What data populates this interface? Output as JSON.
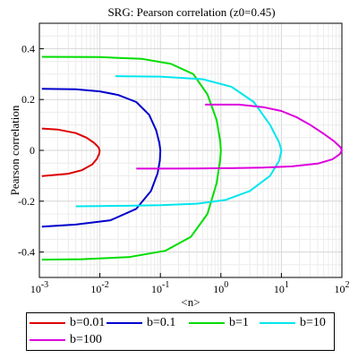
{
  "chart_data": {
    "type": "line",
    "title": "SRG: Pearson correlation (z0=0.45)",
    "xlabel": "<n>",
    "ylabel": "Pearson correlation",
    "x_scale": "log",
    "xlim": [
      0.001,
      100
    ],
    "ylim": [
      -0.5,
      0.5
    ],
    "grid": true,
    "legend_position": "bottom",
    "x_ticks": [
      {
        "value": 0.001,
        "base": "10",
        "exp": "-3"
      },
      {
        "value": 0.01,
        "base": "10",
        "exp": "-2"
      },
      {
        "value": 0.1,
        "base": "10",
        "exp": "-1"
      },
      {
        "value": 1,
        "base": "10",
        "exp": "0"
      },
      {
        "value": 10,
        "base": "10",
        "exp": "1"
      },
      {
        "value": 100,
        "base": "10",
        "exp": "2"
      }
    ],
    "y_ticks": [
      {
        "value": 0.4,
        "label": "0.4"
      },
      {
        "value": 0.2,
        "label": "0.2"
      },
      {
        "value": 0,
        "label": "0"
      },
      {
        "value": -0.2,
        "label": "-0.2"
      },
      {
        "value": -0.4,
        "label": "-0.4"
      }
    ],
    "series": [
      {
        "name": "b=0.01",
        "color": "#dd0000",
        "x": [
          0.0011,
          0.002,
          0.004,
          0.006,
          0.008,
          0.0095,
          0.0099,
          0.0098,
          0.009,
          0.0075,
          0.005,
          0.003,
          0.0011
        ],
        "y": [
          0.086,
          0.082,
          0.068,
          0.05,
          0.03,
          0.012,
          0,
          -0.012,
          -0.032,
          -0.055,
          -0.078,
          -0.092,
          -0.101
        ]
      },
      {
        "name": "b=0.1",
        "color": "#0000cc",
        "x": [
          0.0011,
          0.004,
          0.01,
          0.02,
          0.04,
          0.065,
          0.085,
          0.096,
          0.1,
          0.098,
          0.09,
          0.07,
          0.04,
          0.015,
          0.004,
          0.0011
        ],
        "y": [
          0.242,
          0.24,
          0.232,
          0.218,
          0.19,
          0.14,
          0.08,
          0.03,
          0,
          -0.04,
          -0.09,
          -0.16,
          -0.23,
          -0.275,
          -0.292,
          -0.3
        ]
      },
      {
        "name": "b=1",
        "color": "#00dd00",
        "x": [
          0.0011,
          0.01,
          0.05,
          0.15,
          0.35,
          0.6,
          0.85,
          0.97,
          1.0,
          0.97,
          0.85,
          0.6,
          0.32,
          0.12,
          0.03,
          0.005,
          0.0011
        ],
        "y": [
          0.368,
          0.367,
          0.36,
          0.34,
          0.3,
          0.22,
          0.12,
          0.04,
          0,
          -0.04,
          -0.13,
          -0.25,
          -0.34,
          -0.395,
          -0.42,
          -0.428,
          -0.43
        ]
      },
      {
        "name": "b=10",
        "color": "#00e6ee",
        "x": [
          0.018,
          0.1,
          0.5,
          1.5,
          3.5,
          6.5,
          9.2,
          10,
          9.2,
          6.5,
          3.0,
          1.2,
          0.4,
          0.1,
          0.03,
          0.01,
          0.004
        ],
        "y": [
          0.292,
          0.29,
          0.28,
          0.25,
          0.19,
          0.1,
          0.03,
          0,
          -0.04,
          -0.1,
          -0.16,
          -0.195,
          -0.21,
          -0.216,
          -0.218,
          -0.219,
          -0.22
        ]
      },
      {
        "name": "b=100",
        "color": "#dd00dd",
        "x": [
          0.55,
          2,
          5,
          10,
          18,
          30,
          50,
          75,
          95,
          100,
          92,
          70,
          40,
          15,
          5,
          1.5,
          0.4,
          0.1,
          0.04
        ],
        "y": [
          0.18,
          0.18,
          0.17,
          0.155,
          0.13,
          0.1,
          0.065,
          0.035,
          0.012,
          0,
          -0.015,
          -0.035,
          -0.052,
          -0.063,
          -0.068,
          -0.07,
          -0.071,
          -0.072,
          -0.072
        ]
      }
    ]
  }
}
